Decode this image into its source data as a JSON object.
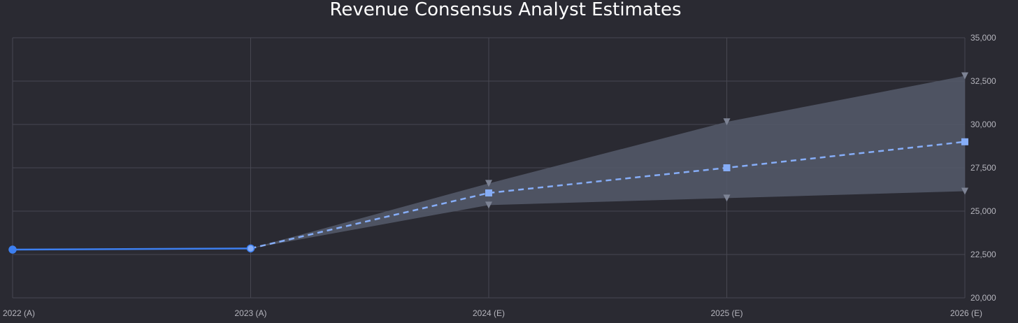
{
  "chart_data": {
    "type": "line",
    "title": "Revenue Consensus Analyst Estimates",
    "categories": [
      "2022 (A)",
      "2023 (A)",
      "2024 (E)",
      "2025 (E)",
      "2026 (E)"
    ],
    "y_axis": {
      "position": "right",
      "range": [
        20000,
        35000
      ],
      "ticks": [
        20000,
        22500,
        25000,
        27500,
        30000,
        32500,
        35000
      ],
      "tick_labels": [
        "20,000",
        "22,500",
        "25,000",
        "27,500",
        "30,000",
        "32,500",
        "35,000"
      ]
    },
    "grid": true,
    "series": [
      {
        "kind": "actual",
        "style": "solid line with circle markers",
        "values": [
          22780,
          22850,
          null,
          null,
          null
        ]
      },
      {
        "kind": "consensus",
        "style": "dashed line with square markers",
        "values": [
          null,
          22850,
          26050,
          27500,
          29000
        ]
      },
      {
        "kind": "high",
        "style": "triangle markers, upper edge of shaded band",
        "values": [
          null,
          22850,
          26600,
          30150,
          32800
        ]
      },
      {
        "kind": "low",
        "style": "triangle markers, lower edge of shaded band",
        "values": [
          null,
          22850,
          25350,
          25750,
          26150
        ]
      }
    ],
    "colors": {
      "background": "#2a2a32",
      "grid": "#474751",
      "actual_line": "#3d7ff0",
      "consensus_line": "#86adf7",
      "band_fill": "#555b6b",
      "range_marker": "#7d8394"
    }
  }
}
